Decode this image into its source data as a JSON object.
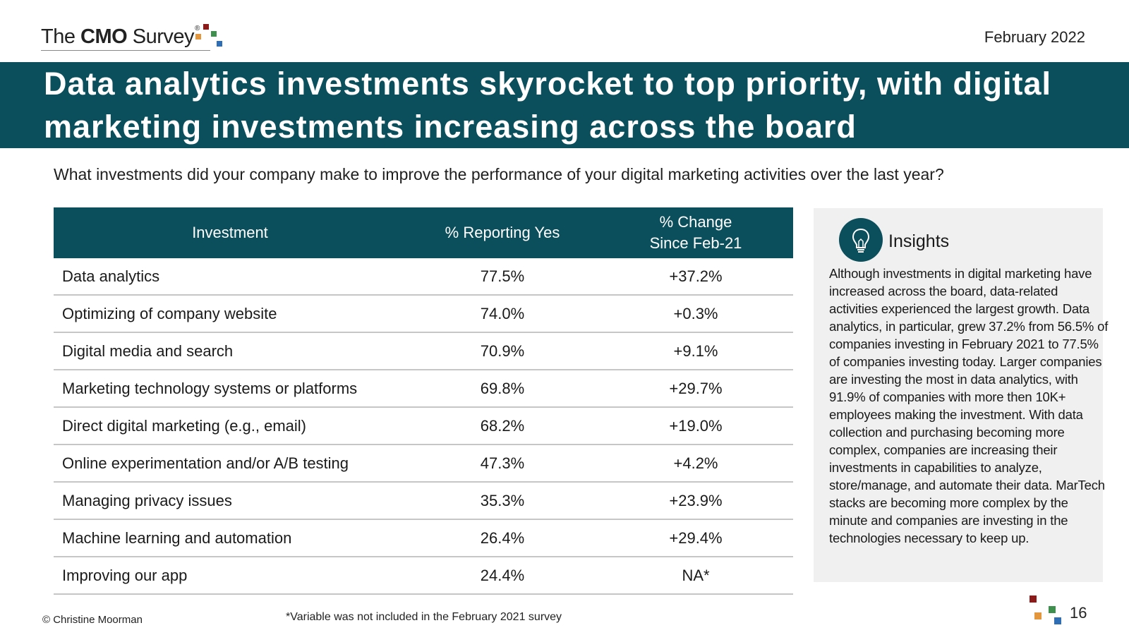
{
  "header": {
    "logo": {
      "prefix": "The ",
      "brand": "CMO",
      "suffix": " Survey",
      "reg_mark": "®"
    },
    "date": "February 2022",
    "title": "Data analytics investments skyrocket to top priority, with digital marketing investments increasing across the board"
  },
  "question": "What investments did your company make to improve the performance of your digital marketing activities over the last year?",
  "table": {
    "headers": {
      "investment": "Investment",
      "reporting": "% Reporting Yes",
      "change_line1": "% Change",
      "change_line2": "Since Feb-21"
    },
    "rows": [
      {
        "investment": "Data analytics",
        "reporting": "77.5%",
        "change": "+37.2%"
      },
      {
        "investment": "Optimizing of company website",
        "reporting": "74.0%",
        "change": "+0.3%"
      },
      {
        "investment": "Digital media and search",
        "reporting": "70.9%",
        "change": "+9.1%"
      },
      {
        "investment": "Marketing technology systems or platforms",
        "reporting": "69.8%",
        "change": "+29.7%"
      },
      {
        "investment": "Direct digital marketing (e.g., email)",
        "reporting": "68.2%",
        "change": "+19.0%"
      },
      {
        "investment": "Online experimentation and/or A/B testing",
        "reporting": "47.3%",
        "change": "+4.2%"
      },
      {
        "investment": "Managing privacy issues",
        "reporting": "35.3%",
        "change": "+23.9%"
      },
      {
        "investment": "Machine learning and automation",
        "reporting": "26.4%",
        "change": "+29.4%"
      },
      {
        "investment": "Improving our app",
        "reporting": "24.4%",
        "change": "NA*"
      }
    ]
  },
  "insights": {
    "icon": "lightbulb-icon",
    "title": "Insights",
    "body": "Although investments in digital marketing have increased across the board, data-related activities experienced the largest growth. Data analytics, in particular, grew 37.2% from 56.5% of companies investing in February 2021 to 77.5% of companies investing today. Larger companies are investing the most in data analytics, with 91.9% of companies with more then 10K+ employees making the investment. With data collection and purchasing becoming more complex, companies are increasing their investments in capabilities to analyze, store/manage, and automate their data. MarTech stacks are becoming more complex by the minute and companies are investing in the technologies necessary to keep up."
  },
  "footer": {
    "footnote": "*Variable was not included in the February 2021 survey",
    "copyright": "© Christine Moorman",
    "page_number": "16"
  },
  "colors": {
    "band": "#0b4f5c",
    "panel": "#f0f0f0",
    "dot_red": "#8b1a1a",
    "dot_orange": "#e3963e",
    "dot_green": "#3f8f4f",
    "dot_blue": "#2f6db5"
  }
}
